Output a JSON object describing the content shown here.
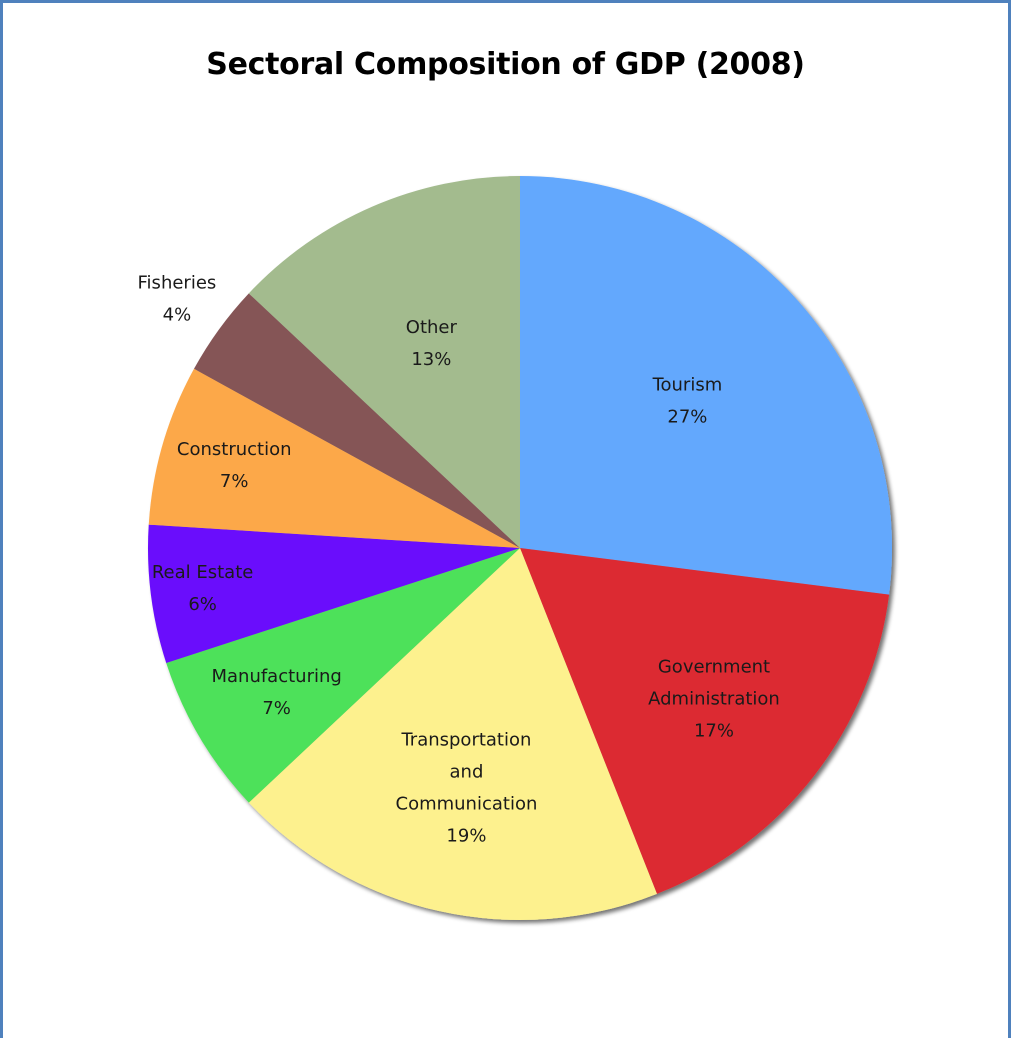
{
  "chart_data": {
    "type": "pie",
    "title": "Sectoral Composition of GDP (2008)",
    "slices": [
      {
        "label": [
          "Tourism"
        ],
        "pct_label": "27%",
        "value": 27,
        "color": "#63a8fd"
      },
      {
        "label": [
          "Government",
          "Administration"
        ],
        "pct_label": "17%",
        "value": 17,
        "color": "#dc2a33"
      },
      {
        "label": [
          "Transportation",
          "and",
          "Communication"
        ],
        "pct_label": "19%",
        "value": 19,
        "color": "#fdf18e"
      },
      {
        "label": [
          "Manufacturing"
        ],
        "pct_label": "7%",
        "value": 7,
        "color": "#4ee15a"
      },
      {
        "label": [
          "Real Estate"
        ],
        "pct_label": "6%",
        "value": 6,
        "color": "#6b0ffc"
      },
      {
        "label": [
          "Construction"
        ],
        "pct_label": "7%",
        "value": 7,
        "color": "#fca84a"
      },
      {
        "label": [
          "Fisheries"
        ],
        "pct_label": "4%",
        "value": 4,
        "color": "#855557"
      },
      {
        "label": [
          "Other"
        ],
        "pct_label": "13%",
        "value": 13,
        "color": "#a3bb8e"
      }
    ],
    "start_direction": "top",
    "direction": "clockwise",
    "legend": "none",
    "data_labels": "category and percent"
  }
}
